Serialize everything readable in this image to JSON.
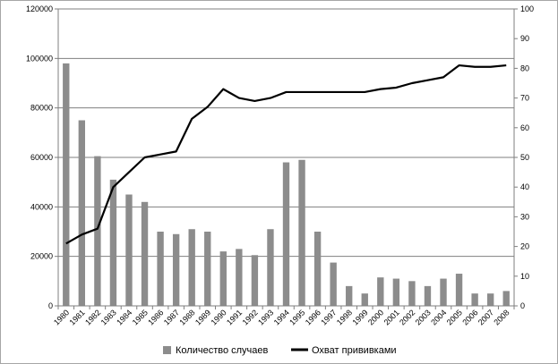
{
  "chart_data": {
    "type": "bar",
    "categories": [
      "1980",
      "1981",
      "1982",
      "1983",
      "1984",
      "1985",
      "1986",
      "1987",
      "1988",
      "1989",
      "1990",
      "1991",
      "1992",
      "1993",
      "1994",
      "1995",
      "1996",
      "1997",
      "1998",
      "1999",
      "2000",
      "2001",
      "2002",
      "2003",
      "2004",
      "2005",
      "2006",
      "2007",
      "2008"
    ],
    "series": [
      {
        "name": "Количество случаев",
        "kind": "bar",
        "axis": "left",
        "color": "#8c8c8c",
        "values": [
          98000,
          75000,
          60500,
          51000,
          45000,
          42000,
          30000,
          29000,
          31000,
          30000,
          22000,
          23000,
          20500,
          31000,
          58000,
          59000,
          30000,
          17500,
          8000,
          5000,
          11500,
          11000,
          10000,
          8000,
          11000,
          13000,
          5000,
          5000,
          6000
        ]
      },
      {
        "name": "Охват прививками",
        "kind": "line",
        "axis": "right",
        "color": "#000000",
        "values": [
          21,
          24,
          26,
          40,
          45,
          50,
          51,
          52,
          63,
          67,
          73,
          70,
          69,
          70,
          72,
          72,
          72,
          72,
          72,
          72,
          73,
          73.5,
          75,
          76,
          77,
          81,
          80.5,
          80.5,
          81
        ]
      }
    ],
    "ylabel": "",
    "ylabel_right": "",
    "ylim": [
      0,
      120000
    ],
    "yticks": [
      "0",
      "20000",
      "40000",
      "60000",
      "80000",
      "100000",
      "120000"
    ],
    "ylim_right": [
      0,
      100
    ],
    "yticks_right": [
      "0",
      "10",
      "20",
      "30",
      "40",
      "50",
      "60",
      "70",
      "80",
      "90",
      "100"
    ],
    "grid": true,
    "legend_position": "bottom"
  }
}
